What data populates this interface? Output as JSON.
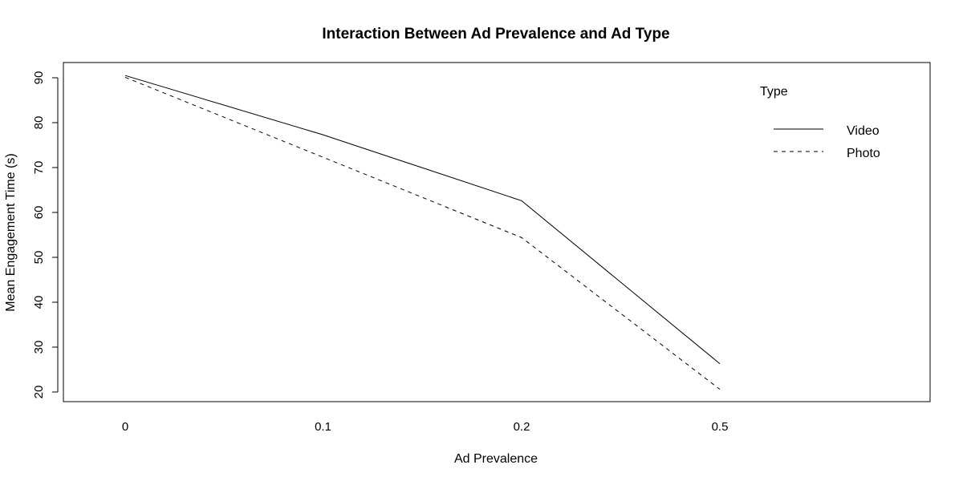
{
  "chart_data": {
    "type": "line",
    "title": "Interaction Between Ad Prevalence and Ad Type",
    "xlabel": "Ad Prevalence",
    "ylabel": "Mean Engagement Time (s)",
    "categories": [
      "0",
      "0.1",
      "0.2",
      "0.5"
    ],
    "ylim": [
      20,
      90
    ],
    "yticks": [
      "20",
      "30",
      "40",
      "50",
      "60",
      "70",
      "80",
      "90"
    ],
    "grid": false,
    "legend": {
      "title": "Type",
      "placement": "top-right"
    },
    "series": [
      {
        "name": "Video",
        "style": "solid",
        "values": [
          90.5,
          77.3,
          62.6,
          26.3
        ]
      },
      {
        "name": "Photo",
        "style": "dashed",
        "values": [
          90.1,
          72.3,
          54.4,
          20.6
        ]
      }
    ]
  }
}
